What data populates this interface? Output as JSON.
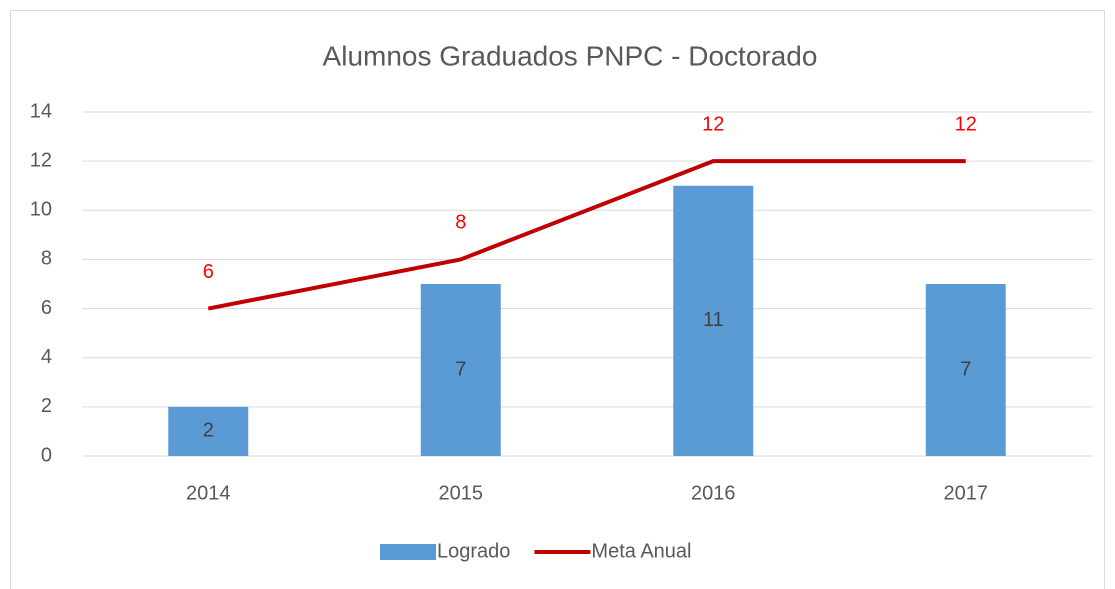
{
  "chart_data": {
    "type": "bar",
    "title": "Alumnos Graduados PNPC - Doctorado",
    "categories": [
      "2014",
      "2015",
      "2016",
      "2017"
    ],
    "series": [
      {
        "name": "Logrado",
        "type": "bar",
        "color": "#5b9bd5",
        "label_color": "#404040",
        "values": [
          2,
          7,
          11,
          7
        ]
      },
      {
        "name": "Meta Anual",
        "type": "line",
        "color": "#c00000",
        "label_color": "#ff0000",
        "values": [
          6,
          8,
          12,
          12
        ]
      }
    ],
    "ylim": [
      0,
      14
    ],
    "yticks": [
      0,
      2,
      4,
      6,
      8,
      10,
      12,
      14
    ],
    "grid": true,
    "legend": "bottom"
  }
}
